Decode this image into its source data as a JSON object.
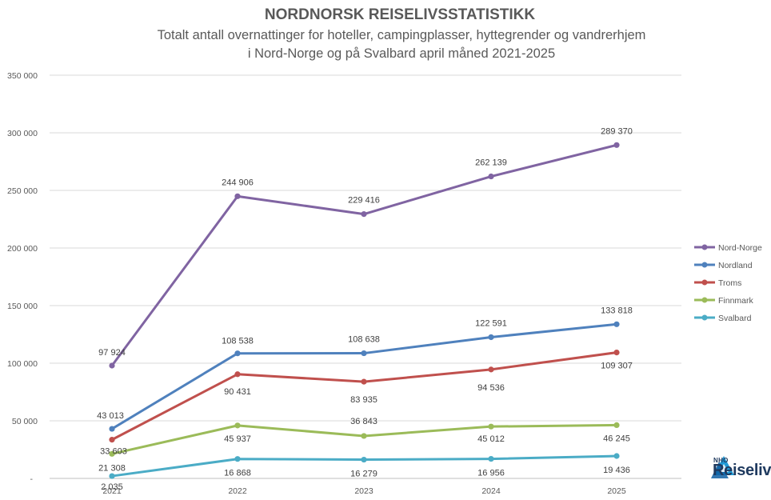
{
  "chart_data": {
    "type": "line",
    "title": "NORDNORSK REISELIVSSTATISTIKK",
    "subtitle_lines": [
      "Totalt antall overnattinger for hoteller, campingplasser, hyttegrender og vandrerhjem",
      "i Nord-Norge og på Svalbard april måned 2021-2025"
    ],
    "x": [
      "2021",
      "2022",
      "2023",
      "2024",
      "2025"
    ],
    "ylim": [
      0,
      350000
    ],
    "yticks": [
      0,
      50000,
      100000,
      150000,
      200000,
      250000,
      300000,
      350000
    ],
    "ytick_labels": [
      "-",
      "50 000",
      "100 000",
      "150 000",
      "200 000",
      "250 000",
      "300 000",
      "350 000"
    ],
    "grid": true,
    "legend_position": "right",
    "series": [
      {
        "name": "Nord-Norge",
        "color": "#8064a2",
        "values": [
          97924,
          244906,
          229416,
          262139,
          289370
        ],
        "labels": [
          "97 924",
          "244 906",
          "229 416",
          "262 139",
          "289 370"
        ]
      },
      {
        "name": "Nordland",
        "color": "#4f81bd",
        "values": [
          43013,
          108538,
          108638,
          122591,
          133818
        ],
        "labels": [
          "43 013",
          "108 538",
          "108 638",
          "122 591",
          "133 818"
        ]
      },
      {
        "name": "Troms",
        "color": "#c0504d",
        "values": [
          33603,
          90431,
          83935,
          94536,
          109307
        ],
        "labels": [
          "33 603",
          "90 431",
          "83 935",
          "94 536",
          "109 307"
        ]
      },
      {
        "name": "Finnmark",
        "color": "#9bbb59",
        "values": [
          21308,
          45937,
          36843,
          45012,
          46245
        ],
        "labels": [
          "21 308",
          "45 937",
          "36 843",
          "45 012",
          "46 245"
        ]
      },
      {
        "name": "Svalbard",
        "color": "#4bacc6",
        "values": [
          2035,
          16868,
          16279,
          16956,
          19436
        ],
        "labels": [
          "2 035",
          "16 868",
          "16 279",
          "16 956",
          "19 436"
        ]
      }
    ]
  },
  "logo": {
    "name": "nho-logo-icon",
    "sub": "NHO",
    "main": "Reiseliv",
    "color": "#1f3a5f"
  }
}
